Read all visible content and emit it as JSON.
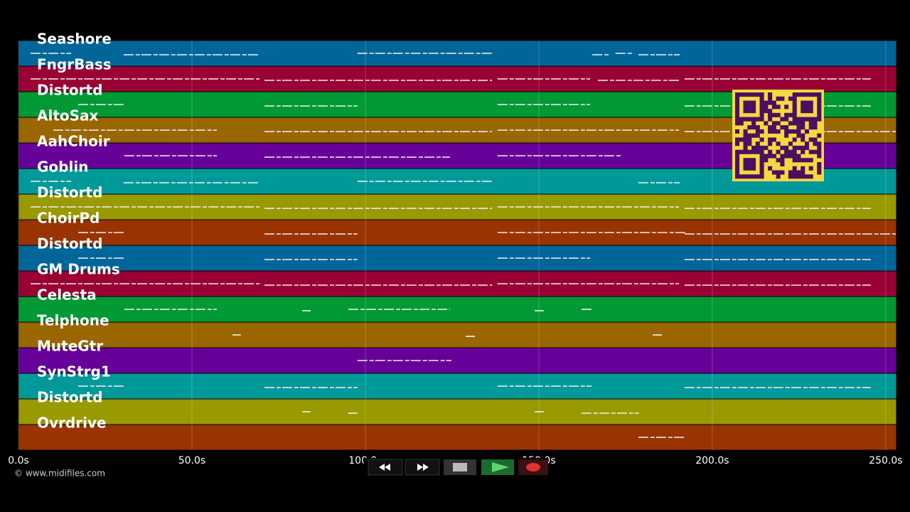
{
  "tracks": [
    {
      "name": "Seashore",
      "color": "#006699",
      "notes": [
        [
          3.5,
          15.2
        ],
        [
          30.3,
          69.3
        ],
        [
          97.7,
          136.5
        ],
        [
          165.4,
          170.3
        ],
        [
          172.1,
          177
        ],
        [
          178.7,
          190.6
        ]
      ]
    },
    {
      "name": "FngrBass",
      "color": "#990033",
      "notes": [
        [
          3.5,
          69.5
        ],
        [
          70.9,
          136.5
        ],
        [
          138.1,
          164.8
        ],
        [
          167,
          190.4
        ],
        [
          192,
          245.7
        ]
      ]
    },
    {
      "name": "Distortd",
      "color": "#009933",
      "notes": [
        [
          17.2,
          30.5
        ],
        [
          70.9,
          97.7
        ],
        [
          138.1,
          164.8
        ],
        [
          192,
          245.7
        ]
      ]
    },
    {
      "name": "AltoSax",
      "color": "#996600",
      "notes": [
        [
          10,
          57.2
        ],
        [
          70.9,
          136.5
        ],
        [
          138.1,
          190.4
        ],
        [
          192,
          252.9
        ]
      ]
    },
    {
      "name": "AahChoir",
      "color": "#660099",
      "notes": [
        [
          30.5,
          57.2
        ],
        [
          70.9,
          124.4
        ],
        [
          138.1,
          174
        ]
      ]
    },
    {
      "name": "Goblin",
      "color": "#009999",
      "notes": [
        [
          3.5,
          15.2
        ],
        [
          30.3,
          69.3
        ],
        [
          97.7,
          136.5
        ],
        [
          178.7,
          190.6
        ]
      ]
    },
    {
      "name": "Distortd",
      "color": "#999900",
      "notes": [
        [
          3.5,
          69.5
        ],
        [
          70.9,
          136.5
        ],
        [
          138.1,
          190.4
        ],
        [
          192,
          245.7
        ]
      ]
    },
    {
      "name": "ChoirPd",
      "color": "#993300",
      "notes": [
        [
          17.2,
          30.5
        ],
        [
          70.9,
          97.7
        ],
        [
          138.1,
          192.4
        ],
        [
          192,
          252.9
        ]
      ]
    },
    {
      "name": "Distortd",
      "color": "#006699",
      "notes": [
        [
          17.2,
          30.5
        ],
        [
          70.9,
          97.7
        ],
        [
          138.1,
          164.8
        ],
        [
          192,
          245.7
        ]
      ]
    },
    {
      "name": "GM Drums",
      "color": "#990033",
      "notes": [
        [
          3.5,
          69.5
        ],
        [
          70.9,
          136.5
        ],
        [
          138.1,
          190.4
        ],
        [
          192,
          245.7
        ]
      ]
    },
    {
      "name": "Celesta",
      "color": "#009933",
      "notes": [
        [
          30.5,
          57.2
        ],
        [
          81.8,
          84.2
        ],
        [
          95.1,
          124.4
        ],
        [
          148.8,
          151.4
        ],
        [
          162.3,
          165.2
        ]
      ]
    },
    {
      "name": "Telphone",
      "color": "#996600",
      "notes": [
        [
          61.7,
          64.1
        ],
        [
          128.9,
          131.6
        ],
        [
          182.8,
          185.5
        ]
      ]
    },
    {
      "name": "MuteGtr",
      "color": "#660099",
      "notes": [
        [
          97.7,
          124.8
        ]
      ]
    },
    {
      "name": "SynStrg1",
      "color": "#009999",
      "notes": [
        [
          17.2,
          30.5
        ],
        [
          70.9,
          97.7
        ],
        [
          138.1,
          165.2
        ],
        [
          192,
          245.7
        ]
      ]
    },
    {
      "name": "Distortd",
      "color": "#999900",
      "notes": [
        [
          81.8,
          84.2
        ],
        [
          95.1,
          97.7
        ],
        [
          148.8,
          151.4
        ],
        [
          162.3,
          178.9
        ]
      ]
    },
    {
      "name": "Ovrdrive",
      "color": "#993300",
      "notes": [
        [
          178.7,
          192.4
        ]
      ]
    }
  ],
  "time_axis": {
    "xlim": [
      0,
      253.1
    ],
    "ticks": [
      {
        "value": 0,
        "label": "0.0s"
      },
      {
        "value": 50,
        "label": "50.0s"
      },
      {
        "value": 100,
        "label": "100.0s"
      },
      {
        "value": 150,
        "label": "150.0s"
      },
      {
        "value": 200,
        "label": "200.0s"
      },
      {
        "value": 250,
        "label": "250.0s"
      }
    ]
  },
  "copyright": "© www.midifiles.com"
}
